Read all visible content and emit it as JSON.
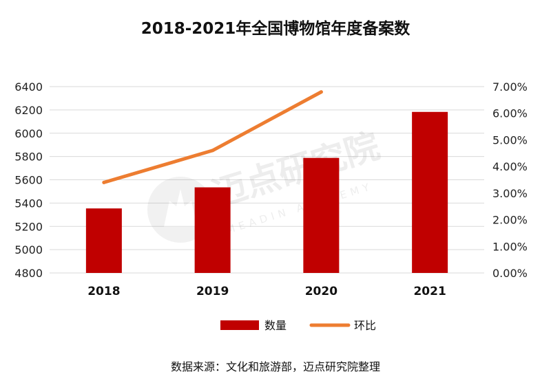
{
  "chart_data": {
    "type": "bar",
    "title": "2018-2021年全国博物馆年度备案数",
    "categories": [
      "2018",
      "2019",
      "2020",
      "2021"
    ],
    "series": [
      {
        "name": "数量",
        "kind": "bar",
        "axis": "left",
        "values": [
          5354,
          5535,
          5788,
          6183
        ]
      },
      {
        "name": "环比",
        "kind": "line",
        "axis": "right",
        "values": [
          0.034,
          0.046,
          0.068,
          null
        ]
      }
    ],
    "left_axis": {
      "min": 4800,
      "max": 6400,
      "ticks": [
        "4800",
        "5000",
        "5200",
        "5400",
        "5600",
        "5800",
        "6000",
        "6200",
        "6400"
      ]
    },
    "right_axis": {
      "min": 0,
      "max": 0.07,
      "ticks": [
        "0.00%",
        "1.00%",
        "2.00%",
        "3.00%",
        "4.00%",
        "5.00%",
        "6.00%",
        "7.00%"
      ]
    },
    "grid": true,
    "legend_position": "bottom",
    "colors": {
      "bar": "#C00000",
      "line": "#ED7D31",
      "grid": "#D9D9D9"
    }
  },
  "watermark": {
    "cn": "迈点研究院",
    "en": "MEADIN ACADEMY"
  },
  "source": "数据来源：文化和旅游部，迈点研究院整理"
}
